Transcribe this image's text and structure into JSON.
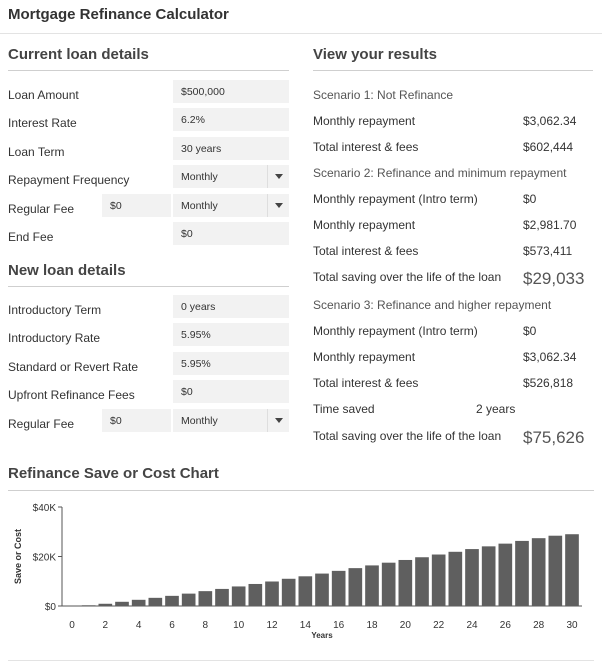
{
  "app": {
    "title": "Mortgage Refinance Calculator"
  },
  "current_loan": {
    "title": "Current loan details",
    "loan_amount": {
      "label": "Loan Amount",
      "value": "$500,000"
    },
    "interest_rate": {
      "label": "Interest Rate",
      "value": "6.2%"
    },
    "loan_term": {
      "label": "Loan Term",
      "value": "30 years"
    },
    "repayment_frequency": {
      "label": "Repayment Frequency",
      "value": "Monthly"
    },
    "regular_fee": {
      "label": "Regular Fee",
      "amount": "$0",
      "frequency": "Monthly"
    },
    "end_fee": {
      "label": "End Fee",
      "value": "$0"
    }
  },
  "new_loan": {
    "title": "New loan details",
    "intro_term": {
      "label": "Introductory Term",
      "value": "0 years"
    },
    "intro_rate": {
      "label": "Introductory Rate",
      "value": "5.95%"
    },
    "revert_rate": {
      "label": "Standard or Revert Rate",
      "value": "5.95%"
    },
    "upfront_fees": {
      "label": "Upfront Refinance Fees",
      "value": "$0"
    },
    "regular_fee": {
      "label": "Regular Fee",
      "amount": "$0",
      "frequency": "Monthly"
    }
  },
  "results": {
    "title": "View your results",
    "scenario1": {
      "title": "Scenario 1: Not Refinance",
      "monthly_label": "Monthly repayment",
      "monthly_value": "$3,062.34",
      "total_label": "Total interest & fees",
      "total_value": "$602,444"
    },
    "scenario2": {
      "title": "Scenario 2: Refinance and minimum repayment",
      "intro_label": "Monthly repayment (Intro term)",
      "intro_value": "$0",
      "monthly_label": "Monthly repayment",
      "monthly_value": "$2,981.70",
      "total_label": "Total interest & fees",
      "total_value": "$573,411",
      "saving_label": "Total saving over the life of the loan",
      "saving_value": "$29,033"
    },
    "scenario3": {
      "title": "Scenario 3: Refinance and higher repayment",
      "intro_label": "Monthly repayment (Intro term)",
      "intro_value": "$0",
      "monthly_label": "Monthly repayment",
      "monthly_value": "$3,062.34",
      "total_label": "Total interest & fees",
      "total_value": "$526,818",
      "time_label": "Time saved",
      "time_value": "2 years",
      "saving_label": "Total saving over the life of the loan",
      "saving_value": "$75,626"
    }
  },
  "chart_section": {
    "title": "Refinance Save or Cost Chart"
  },
  "colors": {
    "bar": "#5f5f5f",
    "axis": "#555555"
  },
  "chart_data": {
    "type": "bar",
    "title": "Refinance Save or Cost Chart",
    "xlabel": "Years",
    "ylabel": "Save or Cost",
    "x": [
      1,
      2,
      3,
      4,
      5,
      6,
      7,
      8,
      9,
      10,
      11,
      12,
      13,
      14,
      15,
      16,
      17,
      18,
      19,
      20,
      21,
      22,
      23,
      24,
      25,
      26,
      27,
      28,
      29,
      30
    ],
    "values": [
      300,
      900,
      1700,
      2500,
      3300,
      4100,
      5000,
      6000,
      6900,
      7900,
      8900,
      9900,
      11000,
      12000,
      13100,
      14200,
      15300,
      16400,
      17500,
      18600,
      19700,
      20800,
      21900,
      23000,
      24100,
      25200,
      26300,
      27400,
      28400,
      29000
    ],
    "xticks": [
      "0",
      "2",
      "4",
      "6",
      "8",
      "10",
      "12",
      "14",
      "16",
      "18",
      "20",
      "22",
      "24",
      "26",
      "28",
      "30"
    ],
    "yticks": [
      "$0",
      "$20K",
      "$40K"
    ],
    "ylim": [
      0,
      40000
    ],
    "xlim": [
      0,
      30
    ]
  }
}
